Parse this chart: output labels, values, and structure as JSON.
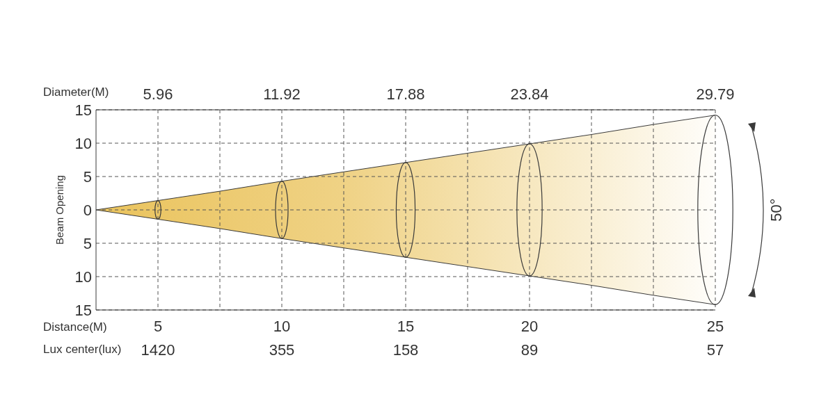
{
  "chart_data": {
    "type": "area",
    "ylabel": "Beam Opening",
    "xlabel": "Distance(M)",
    "x2label": "Diameter(M)",
    "categories": [
      null,
      "5",
      null,
      "10",
      null,
      "15",
      null,
      "20",
      null,
      null,
      "25"
    ],
    "ylim": [
      -15,
      15
    ],
    "yticks": [
      {
        "value": 15,
        "label": "15"
      },
      {
        "value": 10,
        "label": "10"
      },
      {
        "value": 5,
        "label": "5"
      },
      0,
      {
        "value": -5,
        "label": "5"
      },
      {
        "value": -10,
        "label": "10"
      },
      {
        "value": -15,
        "label": "15"
      }
    ],
    "grid": true,
    "series": [
      {
        "color": "#eac35c",
        "values": [
          0,
          1.4,
          2.8,
          4.3,
          5.7,
          7.1,
          8.5,
          9.9,
          11.3,
          12.8,
          14.2
        ]
      },
      {
        "color": "#eac35c",
        "values": [
          0,
          -1.4,
          -2.8,
          -4.3,
          -5.7,
          -7.1,
          -8.5,
          -9.9,
          -11.3,
          -12.8,
          -14.2
        ]
      }
    ],
    "annotations": [
      "5.96",
      "11.92",
      "17.88",
      "23.84",
      "29.79",
      "Lux center(lux)",
      "1420",
      "355",
      "158",
      "89",
      "57",
      "50°"
    ]
  }
}
